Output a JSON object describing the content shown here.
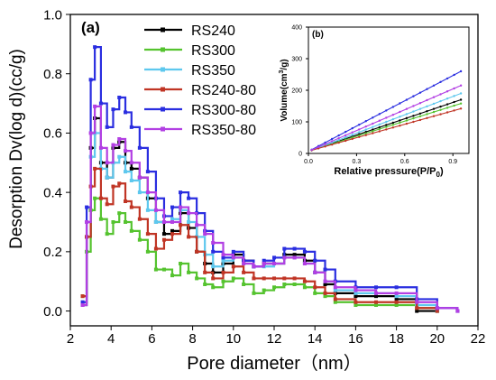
{
  "chart_data": [
    {
      "type": "line",
      "panel_label": "(a)",
      "xlabel": "Pore diameter（nm）",
      "ylabel": "Desorption Dv(log d)(cc/g)",
      "xlim": [
        2,
        22
      ],
      "ylim": [
        -0.05,
        1.0
      ],
      "xticks": [
        2,
        4,
        6,
        8,
        10,
        12,
        14,
        16,
        18,
        20,
        22
      ],
      "yticks": [
        0.0,
        0.2,
        0.4,
        0.6,
        0.8,
        1.0
      ],
      "xtick_labels": [
        "2",
        "4",
        "6",
        "8",
        "10",
        "12",
        "14",
        "16",
        "18",
        "20",
        "22"
      ],
      "ytick_labels": [
        "0.0",
        "0.2",
        "0.4",
        "0.6",
        "0.8",
        "1.0"
      ],
      "legend_position": "top-center",
      "series": [
        {
          "name": "RS240",
          "color": "#000000",
          "x": [
            2.6,
            2.8,
            3.0,
            3.2,
            3.5,
            3.8,
            4.1,
            4.4,
            4.7,
            5.0,
            5.4,
            5.8,
            6.2,
            6.6,
            7.0,
            7.4,
            7.8,
            8.2,
            8.6,
            9.0,
            9.5,
            10.0,
            10.5,
            11.0,
            11.5,
            12.0,
            12.5,
            13.0,
            13.5,
            14.0,
            14.5,
            15.0,
            16.0,
            17.0,
            18.0,
            19.0,
            20.0
          ],
          "y": [
            0.02,
            0.25,
            0.55,
            0.65,
            0.5,
            0.45,
            0.55,
            0.57,
            0.5,
            0.48,
            0.45,
            0.38,
            0.3,
            0.26,
            0.27,
            0.33,
            0.28,
            0.2,
            0.16,
            0.13,
            0.16,
            0.19,
            0.17,
            0.15,
            0.16,
            0.16,
            0.19,
            0.19,
            0.17,
            0.13,
            0.09,
            0.06,
            0.05,
            0.05,
            0.04,
            0.0,
            0.0
          ]
        },
        {
          "name": "RS300",
          "color": "#55c32f",
          "x": [
            2.6,
            2.8,
            3.0,
            3.2,
            3.5,
            3.8,
            4.1,
            4.4,
            4.7,
            5.0,
            5.4,
            5.8,
            6.2,
            6.6,
            7.0,
            7.4,
            7.8,
            8.2,
            8.6,
            9.0,
            9.5,
            10.0,
            10.5,
            11.0,
            11.5,
            12.0,
            12.5,
            13.0,
            13.5,
            14.0,
            14.5,
            15.0,
            16.0,
            17.0,
            18.0,
            19.0,
            20.0
          ],
          "y": [
            0.05,
            0.2,
            0.34,
            0.38,
            0.31,
            0.26,
            0.3,
            0.33,
            0.3,
            0.27,
            0.24,
            0.2,
            0.14,
            0.14,
            0.12,
            0.16,
            0.13,
            0.11,
            0.09,
            0.08,
            0.1,
            0.11,
            0.09,
            0.06,
            0.07,
            0.08,
            0.09,
            0.09,
            0.08,
            0.06,
            0.05,
            0.03,
            0.02,
            0.02,
            0.02,
            0.01,
            0.0
          ]
        },
        {
          "name": "RS350",
          "color": "#5ec8ee",
          "x": [
            2.6,
            2.8,
            3.0,
            3.2,
            3.5,
            3.8,
            4.1,
            4.4,
            4.7,
            5.0,
            5.4,
            5.8,
            6.2,
            6.6,
            7.0,
            7.4,
            7.8,
            8.2,
            8.6,
            9.0,
            9.5,
            10.0,
            10.5,
            11.0,
            11.5,
            12.0,
            12.5,
            13.0,
            13.5,
            14.0,
            14.5,
            15.0,
            16.0,
            17.0,
            18.0,
            19.0,
            20.0
          ],
          "y": [
            0.02,
            0.3,
            0.52,
            0.6,
            0.48,
            0.45,
            0.5,
            0.52,
            0.47,
            0.44,
            0.4,
            0.34,
            0.3,
            0.3,
            0.31,
            0.34,
            0.3,
            0.25,
            0.19,
            0.15,
            0.17,
            0.18,
            0.16,
            0.15,
            0.15,
            0.16,
            0.18,
            0.18,
            0.16,
            0.13,
            0.1,
            0.07,
            0.06,
            0.06,
            0.05,
            0.02,
            0.0
          ]
        },
        {
          "name": "RS240-80",
          "color": "#c03525",
          "x": [
            2.6,
            2.8,
            3.0,
            3.2,
            3.5,
            3.8,
            4.1,
            4.4,
            4.7,
            5.0,
            5.4,
            5.8,
            6.2,
            6.6,
            7.0,
            7.4,
            7.8,
            8.2,
            8.6,
            9.0,
            9.5,
            10.0,
            10.5,
            11.0,
            11.5,
            12.0,
            12.5,
            13.0,
            13.5,
            14.0,
            14.5,
            15.0,
            16.0,
            17.0,
            18.0,
            19.0,
            20.0
          ],
          "y": [
            0.05,
            0.25,
            0.42,
            0.48,
            0.38,
            0.36,
            0.42,
            0.43,
            0.37,
            0.35,
            0.31,
            0.26,
            0.21,
            0.24,
            0.26,
            0.29,
            0.25,
            0.2,
            0.13,
            0.11,
            0.13,
            0.15,
            0.13,
            0.11,
            0.11,
            0.11,
            0.11,
            0.11,
            0.1,
            0.08,
            0.06,
            0.04,
            0.03,
            0.03,
            0.03,
            0.01,
            0.0
          ]
        },
        {
          "name": "RS300-80",
          "color": "#2a2ee0",
          "x": [
            2.6,
            2.8,
            3.0,
            3.2,
            3.5,
            3.8,
            4.1,
            4.4,
            4.7,
            5.0,
            5.4,
            5.8,
            6.2,
            6.6,
            7.0,
            7.4,
            7.8,
            8.2,
            8.6,
            9.0,
            9.5,
            10.0,
            10.5,
            11.0,
            11.5,
            12.0,
            12.5,
            13.0,
            13.5,
            14.0,
            14.5,
            15.0,
            16.0,
            17.0,
            18.0,
            19.0,
            20.0,
            21.0
          ],
          "y": [
            0.03,
            0.35,
            0.78,
            0.89,
            0.7,
            0.62,
            0.68,
            0.72,
            0.67,
            0.62,
            0.55,
            0.47,
            0.38,
            0.32,
            0.35,
            0.4,
            0.38,
            0.33,
            0.27,
            0.2,
            0.18,
            0.2,
            0.17,
            0.15,
            0.17,
            0.18,
            0.21,
            0.21,
            0.2,
            0.17,
            0.14,
            0.1,
            0.08,
            0.08,
            0.08,
            0.04,
            0.01,
            0.0
          ]
        },
        {
          "name": "RS350-80",
          "color": "#b23fe3",
          "x": [
            2.6,
            2.8,
            3.0,
            3.2,
            3.5,
            3.8,
            4.1,
            4.4,
            4.7,
            5.0,
            5.4,
            5.8,
            6.2,
            6.6,
            7.0,
            7.4,
            7.8,
            8.2,
            8.6,
            9.0,
            9.5,
            10.0,
            10.5,
            11.0,
            11.5,
            12.0,
            12.5,
            13.0,
            13.5,
            14.0,
            14.5,
            15.0,
            16.0,
            17.0,
            18.0,
            19.0,
            20.0,
            21.0
          ],
          "y": [
            0.02,
            0.3,
            0.6,
            0.69,
            0.55,
            0.5,
            0.56,
            0.58,
            0.54,
            0.5,
            0.45,
            0.4,
            0.34,
            0.3,
            0.3,
            0.35,
            0.33,
            0.29,
            0.26,
            0.23,
            0.19,
            0.18,
            0.16,
            0.15,
            0.16,
            0.16,
            0.18,
            0.18,
            0.16,
            0.13,
            0.1,
            0.08,
            0.07,
            0.06,
            0.06,
            0.03,
            0.01,
            0.0
          ]
        }
      ]
    },
    {
      "type": "line",
      "panel_label": "(b)",
      "xlabel": "Relative pressure(P/P",
      "xlabel_sub": "0",
      "xlabel_end": ")",
      "ylabel": "Volume(cm",
      "ylabel_sup": "3",
      "ylabel_end": "/g)",
      "xlim": [
        0.0,
        1.0
      ],
      "ylim": [
        0,
        400
      ],
      "xticks": [
        0.0,
        0.3,
        0.6,
        0.9
      ],
      "yticks": [
        0,
        100,
        200,
        300,
        400
      ],
      "xtick_labels": [
        "0.0",
        "0.3",
        "0.6",
        "0.9"
      ],
      "ytick_labels": [
        "0",
        "100",
        "200",
        "300",
        "400"
      ],
      "series": [
        {
          "name": "RS240",
          "color": "#000000",
          "x": [
            0.02,
            0.95
          ],
          "y": [
            10,
            170
          ]
        },
        {
          "name": "RS300",
          "color": "#55c32f",
          "x": [
            0.02,
            0.95
          ],
          "y": [
            10,
            158
          ]
        },
        {
          "name": "RS350",
          "color": "#5ec8ee",
          "x": [
            0.02,
            0.95
          ],
          "y": [
            10,
            190
          ]
        },
        {
          "name": "RS240-80",
          "color": "#c03525",
          "x": [
            0.02,
            0.95
          ],
          "y": [
            10,
            142
          ]
        },
        {
          "name": "RS300-80",
          "color": "#2a2ee0",
          "x": [
            0.02,
            0.95
          ],
          "y": [
            12,
            260
          ]
        },
        {
          "name": "RS350-80",
          "color": "#b23fe3",
          "x": [
            0.02,
            0.95
          ],
          "y": [
            11,
            215
          ]
        }
      ]
    }
  ]
}
